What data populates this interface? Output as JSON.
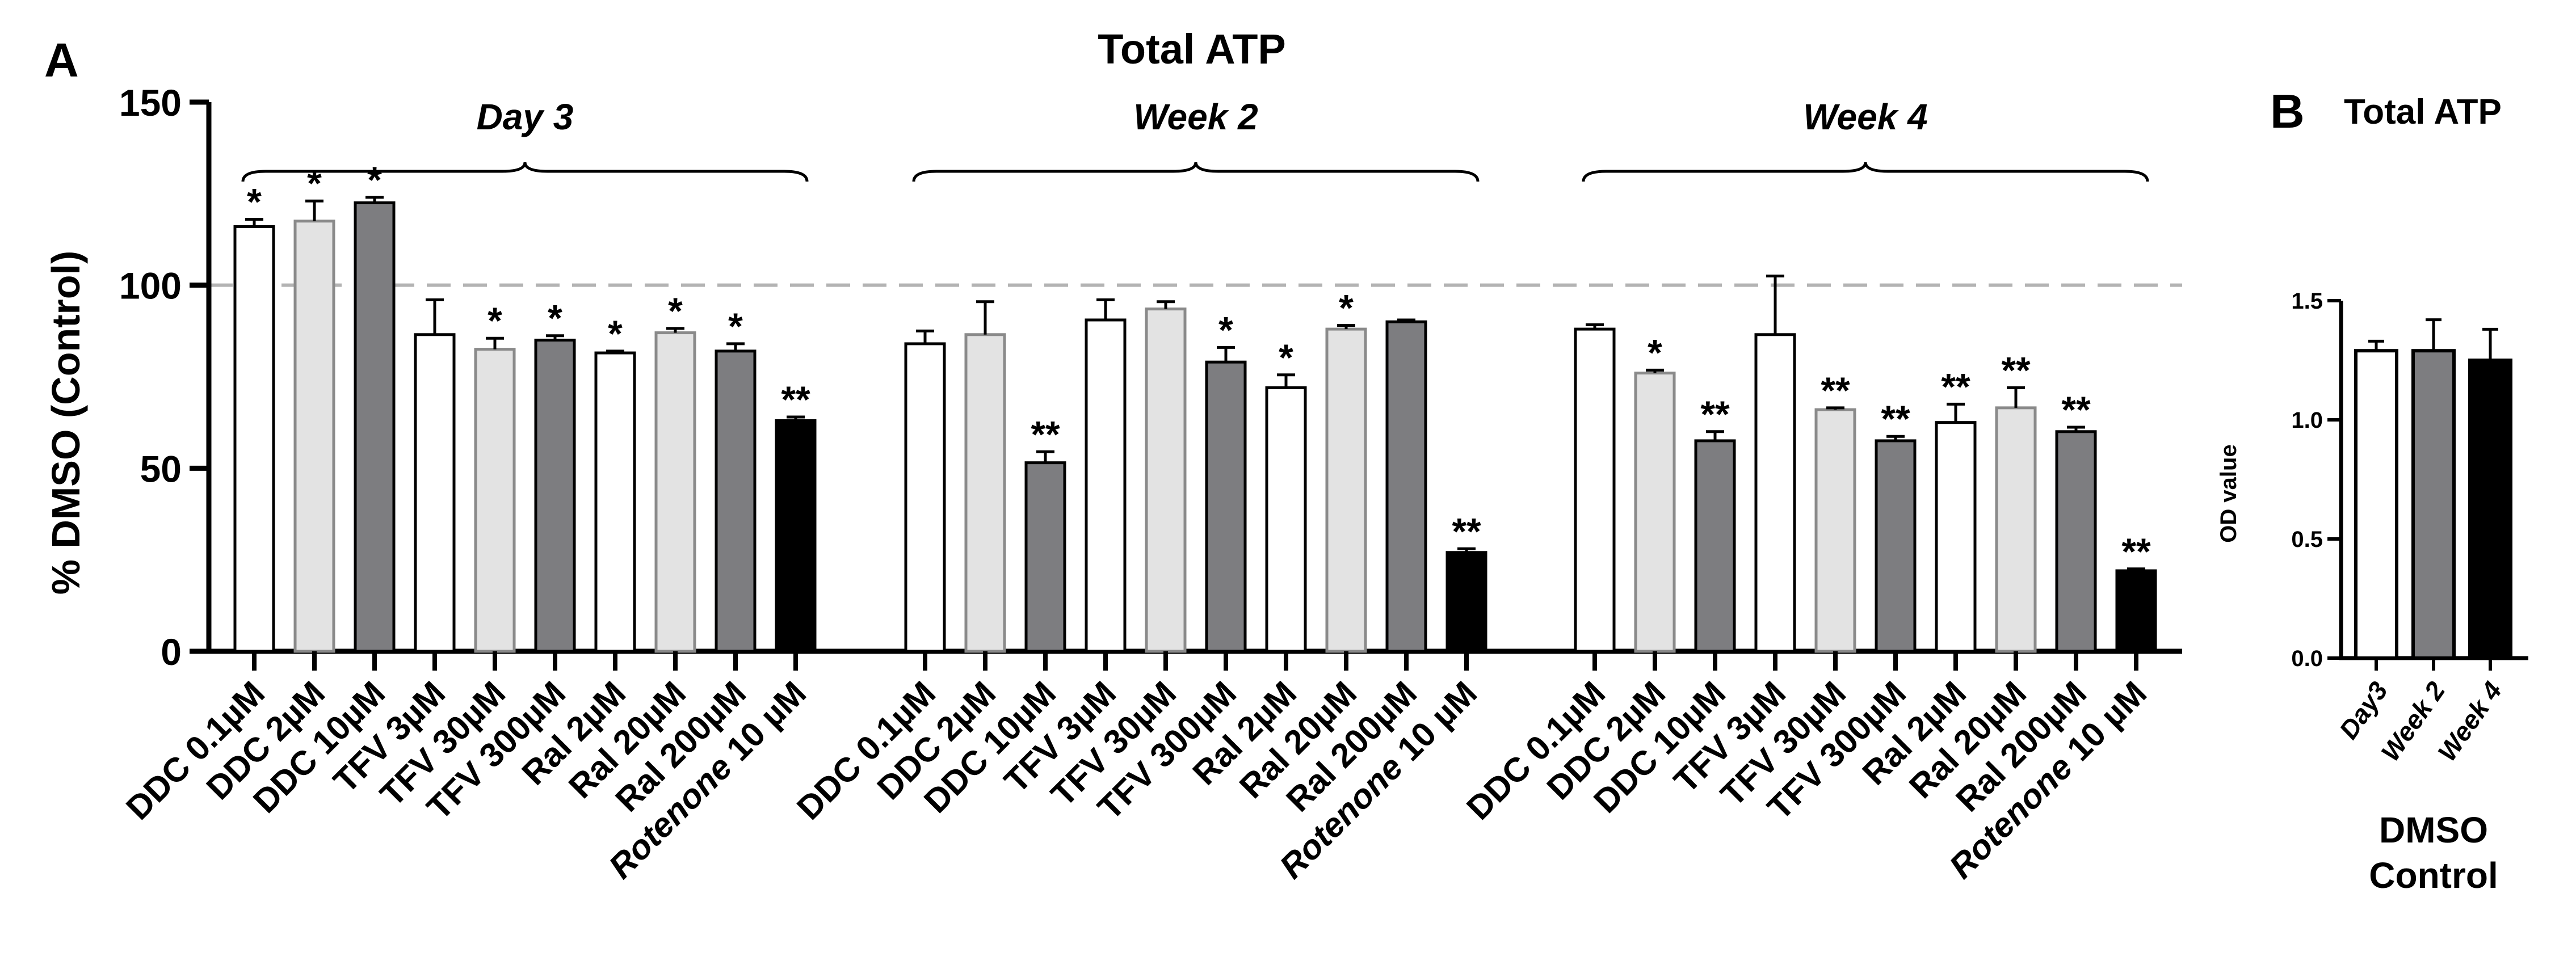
{
  "colors": {
    "white_bar": "#ffffff",
    "lightgray_bar": "#e3e3e3",
    "darkgray_bar": "#7d7d80",
    "black_bar": "#000000",
    "axis": "#000000",
    "reference_line": "#b3b3b3"
  },
  "chart_data": [
    {
      "panel_label": "A",
      "type": "bar",
      "title": "Total ATP",
      "ylabel": "% DMSO (Control)",
      "xlabel": "",
      "ylim": [
        0,
        150
      ],
      "yticks": [
        "0",
        "50",
        "100",
        "150"
      ],
      "ytick_values": [
        0,
        50,
        100,
        150
      ],
      "reference_line": 100,
      "grid": false,
      "bar_fills": [
        "white",
        "lightgray",
        "darkgray",
        "white",
        "lightgray",
        "darkgray",
        "white",
        "lightgray",
        "darkgray",
        "black"
      ],
      "groups": [
        {
          "name": "Day 3",
          "labels": [
            {
              "main": "DDC 0.1µM"
            },
            {
              "main": "DDC 2µM"
            },
            {
              "main": "DDC 10µM"
            },
            {
              "main": "TFV 3µM"
            },
            {
              "main": "TFV 30µM"
            },
            {
              "main": "TFV 300µM"
            },
            {
              "main": "Ral 2µM"
            },
            {
              "main": "Ral 20µM"
            },
            {
              "main": "Ral  200µM"
            },
            {
              "italic": "Rotenone",
              "main": " 10 µM"
            }
          ],
          "values": [
            116,
            117.5,
            122.5,
            86.5,
            82.5,
            85,
            81.5,
            87,
            82,
            63
          ],
          "errors": [
            2,
            5.5,
            1.5,
            9.5,
            3,
            1.2,
            0.5,
            1.2,
            2,
            1
          ],
          "significance": [
            "*",
            "*",
            "*",
            "",
            "*",
            "*",
            "*",
            "*",
            "*",
            "**"
          ]
        },
        {
          "name": "Week 2",
          "labels": [
            {
              "main": "DDC 0.1µM"
            },
            {
              "main": "DDC 2µM"
            },
            {
              "main": "DDC 10µM"
            },
            {
              "main": "TFV 3µM"
            },
            {
              "main": "TFV 30µM"
            },
            {
              "main": "TFV 300µM"
            },
            {
              "main": "Ral 2µM"
            },
            {
              "main": "Ral 20µM"
            },
            {
              "main": "Ral  200µM"
            },
            {
              "italic": "Rotenone",
              "main": " 10 µM"
            }
          ],
          "values": [
            84,
            86.5,
            51.5,
            90.5,
            93.5,
            79,
            72,
            88,
            90,
            27
          ],
          "errors": [
            3.5,
            9,
            3,
            5.5,
            2,
            4,
            3.5,
            1,
            0.5,
            1
          ],
          "significance": [
            "",
            "",
            "**",
            "",
            "",
            "*",
            "*",
            "*",
            "",
            "**"
          ]
        },
        {
          "name": "Week 4",
          "labels": [
            {
              "main": "DDC 0.1µM"
            },
            {
              "main": "DDC 2µM"
            },
            {
              "main": "DDC 10µM"
            },
            {
              "main": "TFV 3µM"
            },
            {
              "main": "TFV 30µM"
            },
            {
              "main": "TFV 300µM"
            },
            {
              "main": "Ral 2µM"
            },
            {
              "main": "Ral 20µM"
            },
            {
              "main": "Ral  200µM"
            },
            {
              "italic": "Rotenone",
              "main": " 10 µM"
            }
          ],
          "values": [
            88,
            76,
            57.5,
            86.5,
            66,
            57.5,
            62.5,
            66.5,
            60,
            22
          ],
          "errors": [
            1.2,
            0.8,
            2.5,
            16,
            0.5,
            1.2,
            5,
            5.5,
            1.2,
            0.5
          ],
          "significance": [
            "",
            "*",
            "**",
            "",
            "**",
            "**",
            "**",
            "**",
            "**",
            "**"
          ]
        }
      ]
    },
    {
      "panel_label": "B",
      "type": "bar",
      "title": "Total ATP",
      "ylabel": "OD value",
      "xlabel": "DMSO Control",
      "xlabel_lines": [
        "DMSO",
        "Control"
      ],
      "ylim": [
        0,
        1.5
      ],
      "yticks": [
        "0.0",
        "0.5",
        "1.0",
        "1.5"
      ],
      "ytick_values": [
        0,
        0.5,
        1.0,
        1.5
      ],
      "categories": [
        "Day3",
        "Week 2",
        "Week 4"
      ],
      "values": [
        1.29,
        1.29,
        1.25
      ],
      "errors": [
        0.04,
        0.13,
        0.13
      ],
      "bar_fills": [
        "white",
        "darkgray",
        "black"
      ]
    }
  ]
}
